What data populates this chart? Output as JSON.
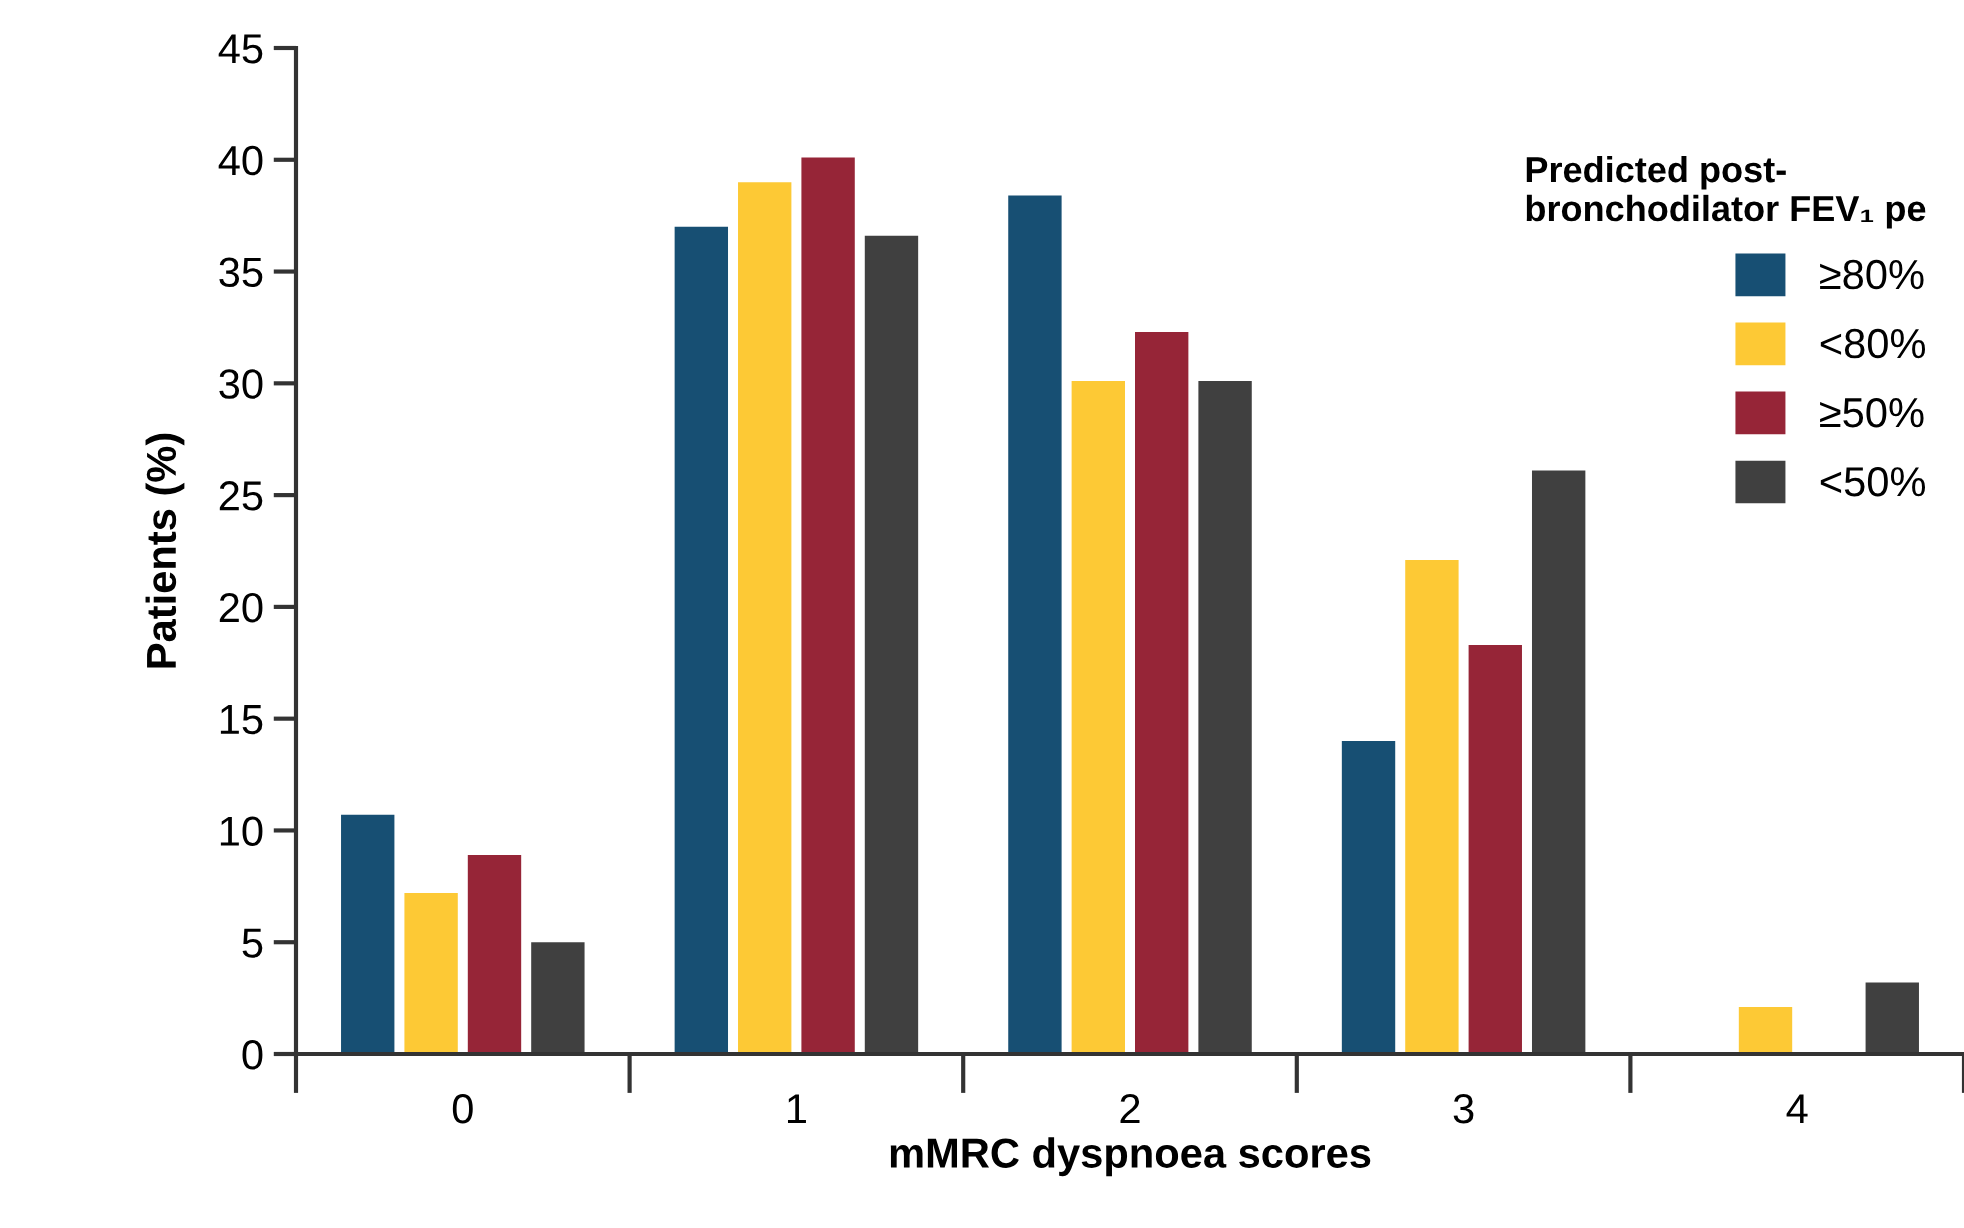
{
  "chart_data": {
    "type": "bar",
    "xlabel": "mMRC dyspnoea scores",
    "ylabel": "Patients (%)",
    "legend_title": "Predicted post-\nbronchodilator FEV₁ pe",
    "categories": [
      "0",
      "1",
      "2",
      "3",
      "4"
    ],
    "series": [
      {
        "name": "≥80%",
        "color": "#174f73",
        "values": [
          10.7,
          37.0,
          38.4,
          14.0,
          null
        ]
      },
      {
        "name": "<80%",
        "color": "#fdc935",
        "values": [
          7.2,
          39.0,
          30.1,
          22.1,
          2.1
        ]
      },
      {
        "name": "≥50%",
        "color": "#962537",
        "values": [
          8.9,
          40.1,
          32.3,
          18.3,
          null
        ]
      },
      {
        "name": "<50%",
        "color": "#404040",
        "values": [
          5.0,
          36.6,
          30.1,
          26.1,
          3.2
        ]
      }
    ],
    "ylim": [
      0,
      45
    ],
    "yticks": [
      0,
      5,
      10,
      15,
      20,
      25,
      30,
      35,
      40,
      45
    ],
    "grid": false,
    "legend": "top right"
  }
}
